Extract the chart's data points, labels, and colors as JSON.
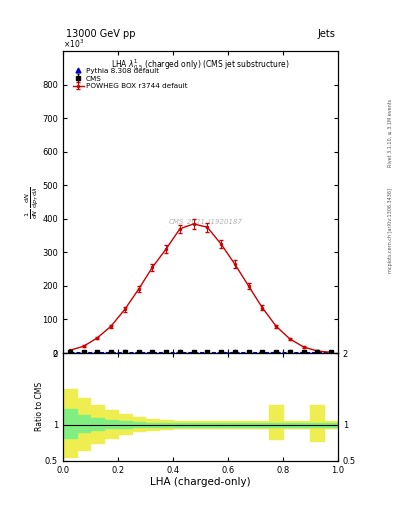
{
  "title_left": "13000 GeV pp",
  "title_right": "Jets",
  "plot_title": "LHA $\\lambda^{1}_{0.5}$ (charged only) (CMS jet substructure)",
  "ylabel_ratio": "Ratio to CMS",
  "xlabel": "LHA (charged-only)",
  "right_label_top": "Rivet 3.1.10, ≥ 3.1M events",
  "right_label_bottom": "mcplots.cern.ch [arXiv:1306.3436]",
  "watermark": "CMS_2021_I1920187",
  "ylim_main": [
    0,
    900
  ],
  "ylim_ratio": [
    0.5,
    2.0
  ],
  "xlim": [
    0,
    1
  ],
  "cms_color": "#000000",
  "powheg_color": "#cc0000",
  "pythia_color": "#0000cc",
  "band_green_color": "#80ee80",
  "band_yellow_color": "#eeee50",
  "powheg_x": [
    0.025,
    0.075,
    0.125,
    0.175,
    0.225,
    0.275,
    0.325,
    0.375,
    0.425,
    0.475,
    0.525,
    0.575,
    0.625,
    0.675,
    0.725,
    0.775,
    0.825,
    0.875,
    0.925,
    0.975
  ],
  "powheg_y": [
    8,
    20,
    45,
    80,
    130,
    190,
    255,
    310,
    370,
    385,
    375,
    325,
    265,
    200,
    135,
    80,
    42,
    18,
    6,
    2
  ],
  "powheg_yerr": [
    2,
    3,
    4,
    5,
    7,
    9,
    11,
    12,
    13,
    14,
    14,
    13,
    11,
    9,
    7,
    5,
    4,
    3,
    2,
    1
  ],
  "cms_x": [
    0.025,
    0.075,
    0.125,
    0.175,
    0.225,
    0.275,
    0.325,
    0.375,
    0.425,
    0.475,
    0.525,
    0.575,
    0.625,
    0.675,
    0.725,
    0.775,
    0.825,
    0.875,
    0.925,
    0.975
  ],
  "cms_y": [
    6,
    18,
    42,
    76,
    126,
    186,
    252,
    308,
    368,
    383,
    373,
    323,
    263,
    198,
    133,
    78,
    40,
    16,
    5,
    2
  ],
  "cms_yerr": [
    2,
    3,
    4,
    5,
    6,
    8,
    10,
    11,
    12,
    13,
    13,
    12,
    10,
    8,
    6,
    5,
    3,
    2,
    1,
    1
  ],
  "pythia_x": [
    0.025,
    0.075,
    0.125,
    0.175,
    0.225,
    0.275,
    0.325,
    0.375,
    0.425,
    0.475,
    0.525,
    0.575,
    0.625,
    0.675,
    0.725,
    0.775,
    0.825,
    0.875,
    0.925,
    0.975
  ],
  "pythia_y": [
    2,
    2,
    2,
    2,
    2,
    2,
    2,
    2,
    2,
    2,
    2,
    2,
    2,
    2,
    2,
    2,
    2,
    2,
    2,
    2
  ],
  "ratio_x_edges": [
    0.0,
    0.05,
    0.1,
    0.15,
    0.2,
    0.25,
    0.3,
    0.35,
    0.4,
    0.45,
    0.5,
    0.55,
    0.6,
    0.65,
    0.7,
    0.75,
    0.8,
    0.85,
    0.9,
    0.95,
    1.0
  ],
  "ratio_green_lo": [
    0.82,
    0.9,
    0.93,
    0.95,
    0.96,
    0.97,
    0.97,
    0.97,
    0.97,
    0.97,
    0.97,
    0.97,
    0.97,
    0.97,
    0.97,
    0.97,
    0.97,
    0.97,
    0.97,
    0.97
  ],
  "ratio_green_hi": [
    1.22,
    1.14,
    1.1,
    1.07,
    1.05,
    1.04,
    1.03,
    1.03,
    1.03,
    1.03,
    1.03,
    1.03,
    1.03,
    1.03,
    1.03,
    1.03,
    1.03,
    1.03,
    1.03,
    1.03
  ],
  "ratio_yellow_lo": [
    0.55,
    0.65,
    0.75,
    0.82,
    0.87,
    0.91,
    0.93,
    0.94,
    0.95,
    0.95,
    0.95,
    0.95,
    0.95,
    0.95,
    0.95,
    0.8,
    0.95,
    0.95,
    0.78,
    0.95
  ],
  "ratio_yellow_hi": [
    1.5,
    1.38,
    1.28,
    1.2,
    1.15,
    1.11,
    1.08,
    1.07,
    1.06,
    1.06,
    1.06,
    1.06,
    1.06,
    1.06,
    1.06,
    1.28,
    1.06,
    1.06,
    1.28,
    1.06
  ]
}
